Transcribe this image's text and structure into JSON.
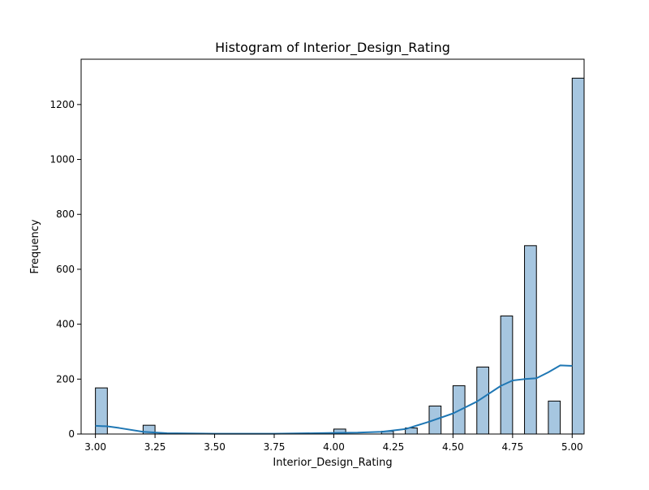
{
  "chart_data": {
    "type": "bar",
    "subtype": "histogram-with-kde",
    "title": "Histogram of Interior_Design_Rating",
    "xlabel": "Interior_Design_Rating",
    "ylabel": "Frequency",
    "xlim": [
      2.94,
      5.05
    ],
    "ylim": [
      0,
      1365
    ],
    "xticks": [
      "3.00",
      "3.25",
      "3.50",
      "3.75",
      "4.00",
      "4.25",
      "4.50",
      "4.75",
      "5.00"
    ],
    "xtick_values": [
      3.0,
      3.25,
      3.5,
      3.75,
      4.0,
      4.25,
      4.5,
      4.75,
      5.0
    ],
    "yticks": [
      "0",
      "200",
      "400",
      "600",
      "800",
      "1000",
      "1200"
    ],
    "ytick_values": [
      0,
      200,
      400,
      600,
      800,
      1000,
      1200
    ],
    "bin_width": 0.05,
    "bins": [
      {
        "x0": 3.0,
        "value": 168
      },
      {
        "x0": 3.2,
        "value": 32
      },
      {
        "x0": 4.0,
        "value": 18
      },
      {
        "x0": 4.2,
        "value": 10
      },
      {
        "x0": 4.3,
        "value": 22
      },
      {
        "x0": 4.4,
        "value": 102
      },
      {
        "x0": 4.5,
        "value": 176
      },
      {
        "x0": 4.6,
        "value": 244
      },
      {
        "x0": 4.7,
        "value": 430
      },
      {
        "x0": 4.8,
        "value": 686
      },
      {
        "x0": 4.9,
        "value": 120
      },
      {
        "x0": 5.0,
        "value": 1296
      }
    ],
    "kde": {
      "x": [
        3.0,
        3.05,
        3.1,
        3.2,
        3.3,
        3.5,
        3.75,
        4.0,
        4.1,
        4.2,
        4.3,
        4.4,
        4.5,
        4.6,
        4.7,
        4.75,
        4.8,
        4.85,
        4.9,
        4.95,
        5.0
      ],
      "y": [
        30,
        28,
        22,
        8,
        3,
        1,
        1,
        4,
        5,
        8,
        18,
        45,
        75,
        118,
        175,
        195,
        200,
        203,
        225,
        250,
        248
      ]
    },
    "colors": {
      "bar_fill": "#a6c6e0",
      "bar_edge": "#000000",
      "kde_line": "#1f77b4",
      "axes": "#000000"
    },
    "grid": false
  }
}
